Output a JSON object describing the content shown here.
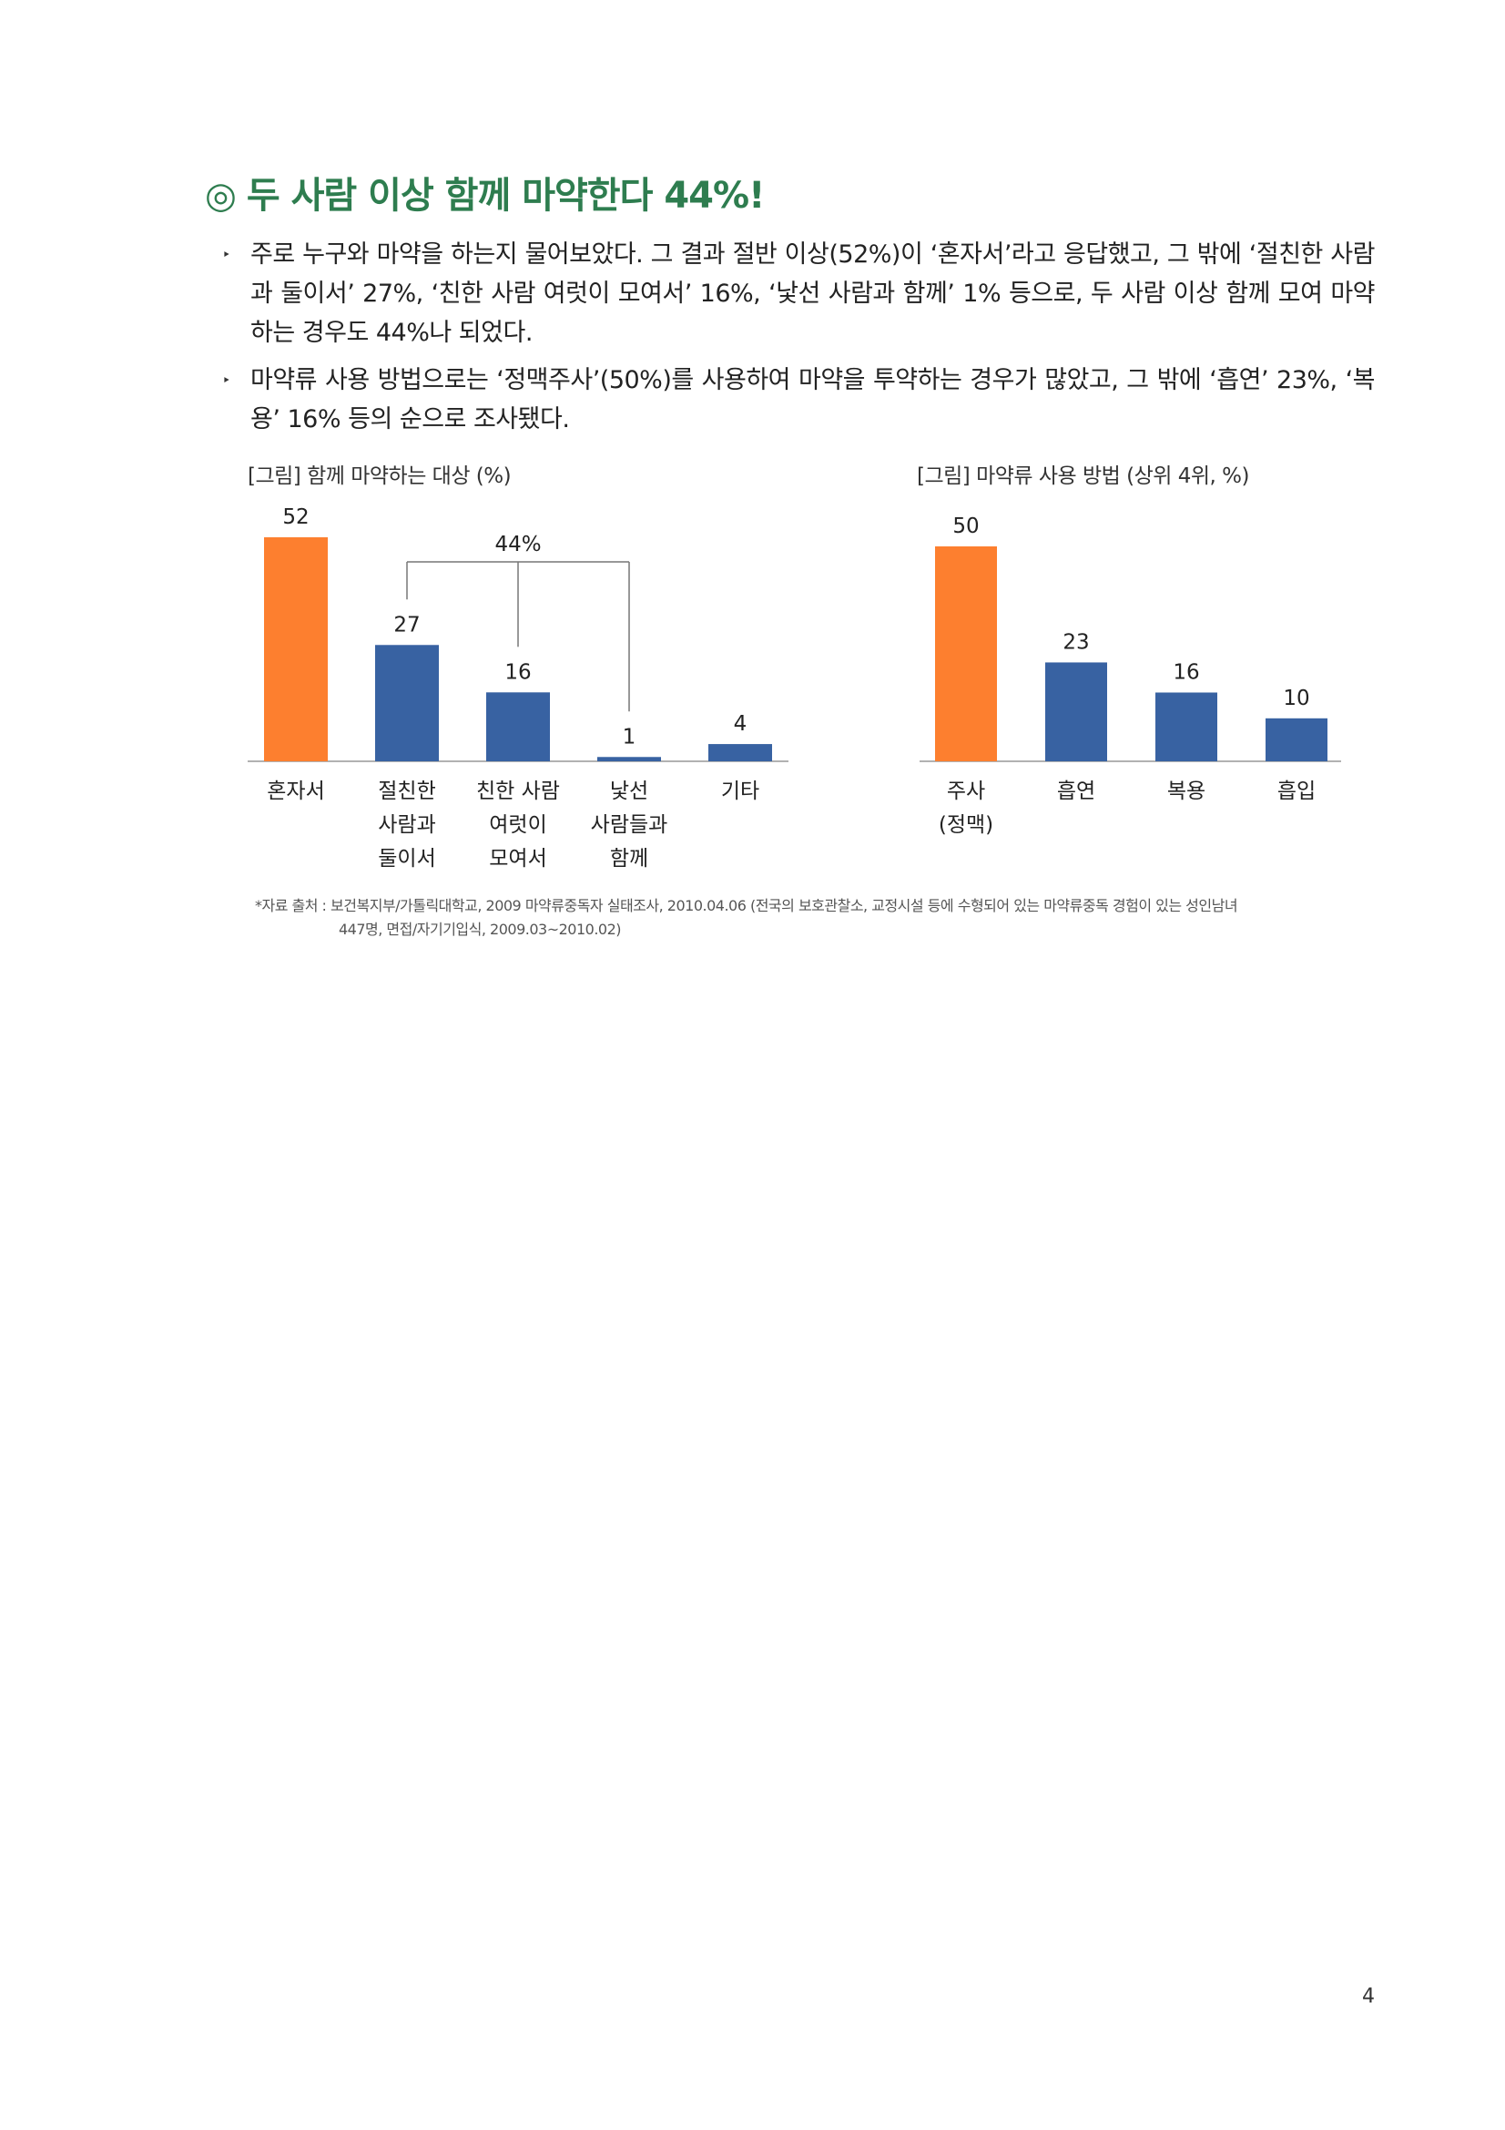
{
  "heading": {
    "mark": "◎",
    "text": "두 사람 이상 함께 마약한다 44%!"
  },
  "bullets": [
    {
      "marker": "‣",
      "text": "주로 누구와 마약을 하는지 물어보았다. 그 결과 절반 이상(52%)이 ‘혼자서’라고 응답했고, 그 밖에 ‘절친한 사람과 둘이서’ 27%, ‘친한 사람 여럿이 모여서’ 16%, ‘낯선 사람과 함께’ 1% 등으로, 두 사람 이상 함께 모여 마약하는 경우도 44%나 되었다."
    },
    {
      "marker": "‣",
      "text": "마약류 사용 방법으로는 ‘정맥주사’(50%)를 사용하여 마약을 투약하는 경우가 많았고, 그 밖에 ‘흡연’ 23%, ‘복용’ 16% 등의 순으로 조사됐다."
    }
  ],
  "colors": {
    "heading": "#2e7d4f",
    "orange": "#fd7f2f",
    "blue": "#3862a2",
    "axis": "#999999"
  },
  "chart_data": [
    {
      "type": "bar",
      "title": "[그림] 함께 마약하는 대상 (%)",
      "categories": [
        [
          "혼자서"
        ],
        [
          "절친한",
          "사람과",
          "둘이서"
        ],
        [
          "친한 사람",
          "여럿이",
          "모여서"
        ],
        [
          "낯선",
          "사람들과",
          "함께"
        ],
        [
          "기타"
        ]
      ],
      "values": [
        52,
        27,
        16,
        1,
        4
      ],
      "value_labels": [
        "52",
        "27",
        "16",
        "1",
        "4"
      ],
      "bar_colors": [
        "#fd7f2f",
        "#3862a2",
        "#3862a2",
        "#3862a2",
        "#3862a2"
      ],
      "annotation": {
        "text": "44%",
        "groups_categories": [
          1,
          2,
          3
        ]
      },
      "ylim": [
        0,
        52
      ]
    },
    {
      "type": "bar",
      "title": "[그림] 마약류 사용 방법 (상위 4위, %)",
      "categories": [
        [
          "주사",
          "(정맥)"
        ],
        [
          "흡연"
        ],
        [
          "복용"
        ],
        [
          "흡입"
        ]
      ],
      "values": [
        50,
        23,
        16,
        10
      ],
      "value_labels": [
        "50",
        "23",
        "16",
        "10"
      ],
      "bar_colors": [
        "#fd7f2f",
        "#3862a2",
        "#3862a2",
        "#3862a2"
      ],
      "ylim": [
        0,
        50
      ]
    }
  ],
  "source": {
    "line1": "*자료 출처 : 보건복지부/가톨릭대학교, 2009 마약류중독자 실태조사, 2010.04.06 (전국의 보호관찰소, 교정시설 등에 수형되어 있는 마약류중독 경험이 있는 성인남녀",
    "line2": "447명, 면접/자기기입식, 2009.03~2010.02)"
  },
  "page_number": "4"
}
